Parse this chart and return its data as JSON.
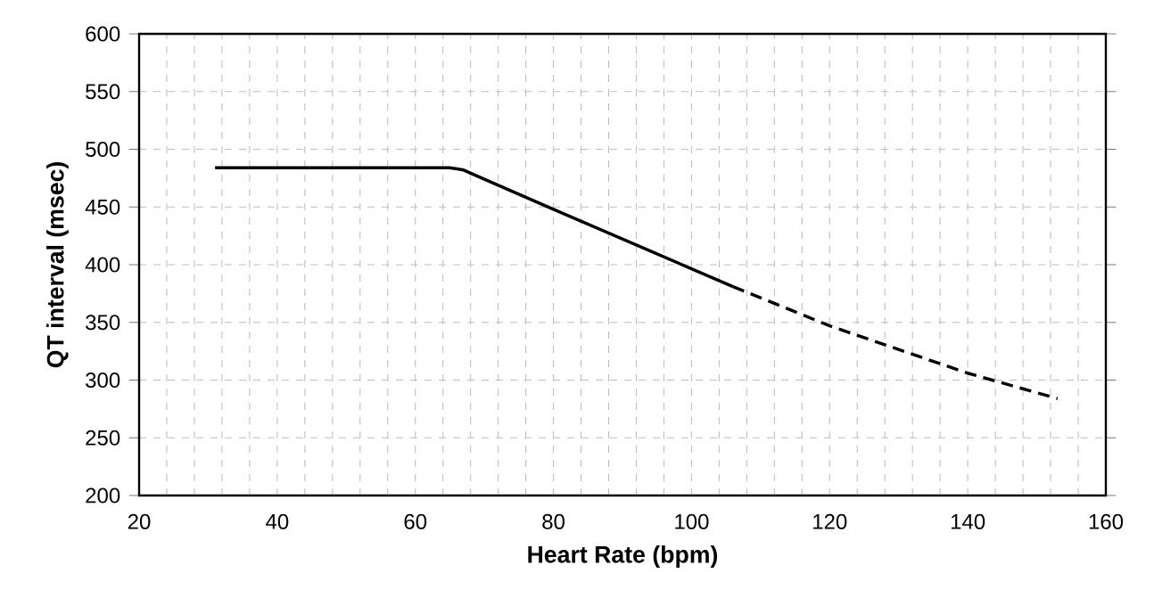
{
  "chart_data": {
    "type": "line",
    "xlabel": "Heart Rate (bpm)",
    "ylabel": "QT interval (msec)",
    "series": [
      {
        "color": "#000000",
        "line_style": "solid",
        "x": [
          31,
          65,
          67,
          70,
          80,
          106
        ],
        "values": [
          484,
          484,
          482,
          474,
          448,
          381
        ]
      },
      {
        "color": "#000000",
        "line_style": "dashed",
        "x": [
          106,
          120,
          140,
          153
        ],
        "values": [
          381,
          347,
          306,
          284
        ]
      }
    ],
    "xlim": [
      20,
      160
    ],
    "ylim": [
      200,
      600
    ],
    "xticks": [
      20,
      {
        "value": 24,
        "label": null
      },
      {
        "value": 28,
        "label": null
      },
      {
        "value": 32,
        "label": null
      },
      {
        "value": 36,
        "label": null
      },
      40,
      {
        "value": 44,
        "label": null
      },
      {
        "value": 48,
        "label": null
      },
      {
        "value": 52,
        "label": null
      },
      {
        "value": 56,
        "label": null
      },
      60,
      {
        "value": 64,
        "label": null
      },
      {
        "value": 68,
        "label": null
      },
      {
        "value": 72,
        "label": null
      },
      {
        "value": 76,
        "label": null
      },
      80,
      {
        "value": 84,
        "label": null
      },
      {
        "value": 88,
        "label": null
      },
      {
        "value": 92,
        "label": null
      },
      {
        "value": 96,
        "label": null
      },
      100,
      {
        "value": 104,
        "label": null
      },
      {
        "value": 108,
        "label": null
      },
      {
        "value": 112,
        "label": null
      },
      {
        "value": 116,
        "label": null
      },
      120,
      {
        "value": 124,
        "label": null
      },
      {
        "value": 128,
        "label": null
      },
      {
        "value": 132,
        "label": null
      },
      {
        "value": 136,
        "label": null
      },
      140,
      {
        "value": 144,
        "label": null
      },
      {
        "value": 148,
        "label": null
      },
      {
        "value": 152,
        "label": null
      },
      {
        "value": 156,
        "label": null
      },
      160
    ],
    "yticks": [
      200,
      250,
      300,
      350,
      400,
      450,
      500,
      550,
      600
    ],
    "grid": true,
    "marker": "none"
  }
}
